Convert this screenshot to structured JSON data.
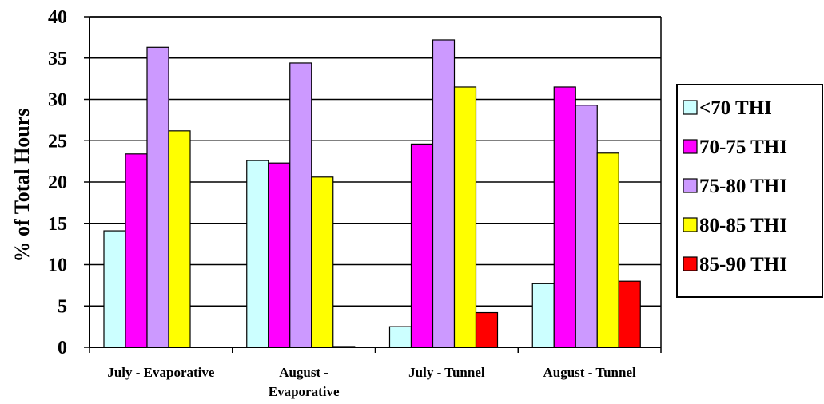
{
  "chart_data": {
    "type": "bar",
    "title": "",
    "xlabel": "",
    "ylabel": "% of Total Hours",
    "ylim": [
      0,
      40
    ],
    "yticks": [
      0,
      5,
      10,
      15,
      20,
      25,
      30,
      35,
      40
    ],
    "grid": true,
    "legend_position": "right",
    "categories": [
      [
        "July - Evaporative"
      ],
      [
        "August -",
        "Evaporative"
      ],
      [
        "July - Tunnel"
      ],
      [
        "August - Tunnel"
      ]
    ],
    "series": [
      {
        "name": "<70 THI",
        "color": "#ccffff",
        "values": [
          14.1,
          22.6,
          2.5,
          7.7
        ]
      },
      {
        "name": "70-75 THI",
        "color": "#ff00ff",
        "values": [
          23.4,
          22.3,
          24.6,
          31.5
        ]
      },
      {
        "name": "75-80 THI",
        "color": "#cc99ff",
        "values": [
          36.3,
          34.4,
          37.2,
          29.3
        ]
      },
      {
        "name": "80-85 THI",
        "color": "#ffff00",
        "values": [
          26.2,
          20.6,
          31.5,
          23.5
        ]
      },
      {
        "name": "85-90 THI",
        "color": "#ff0000",
        "values": [
          0,
          0.1,
          4.2,
          8.0
        ]
      }
    ]
  }
}
